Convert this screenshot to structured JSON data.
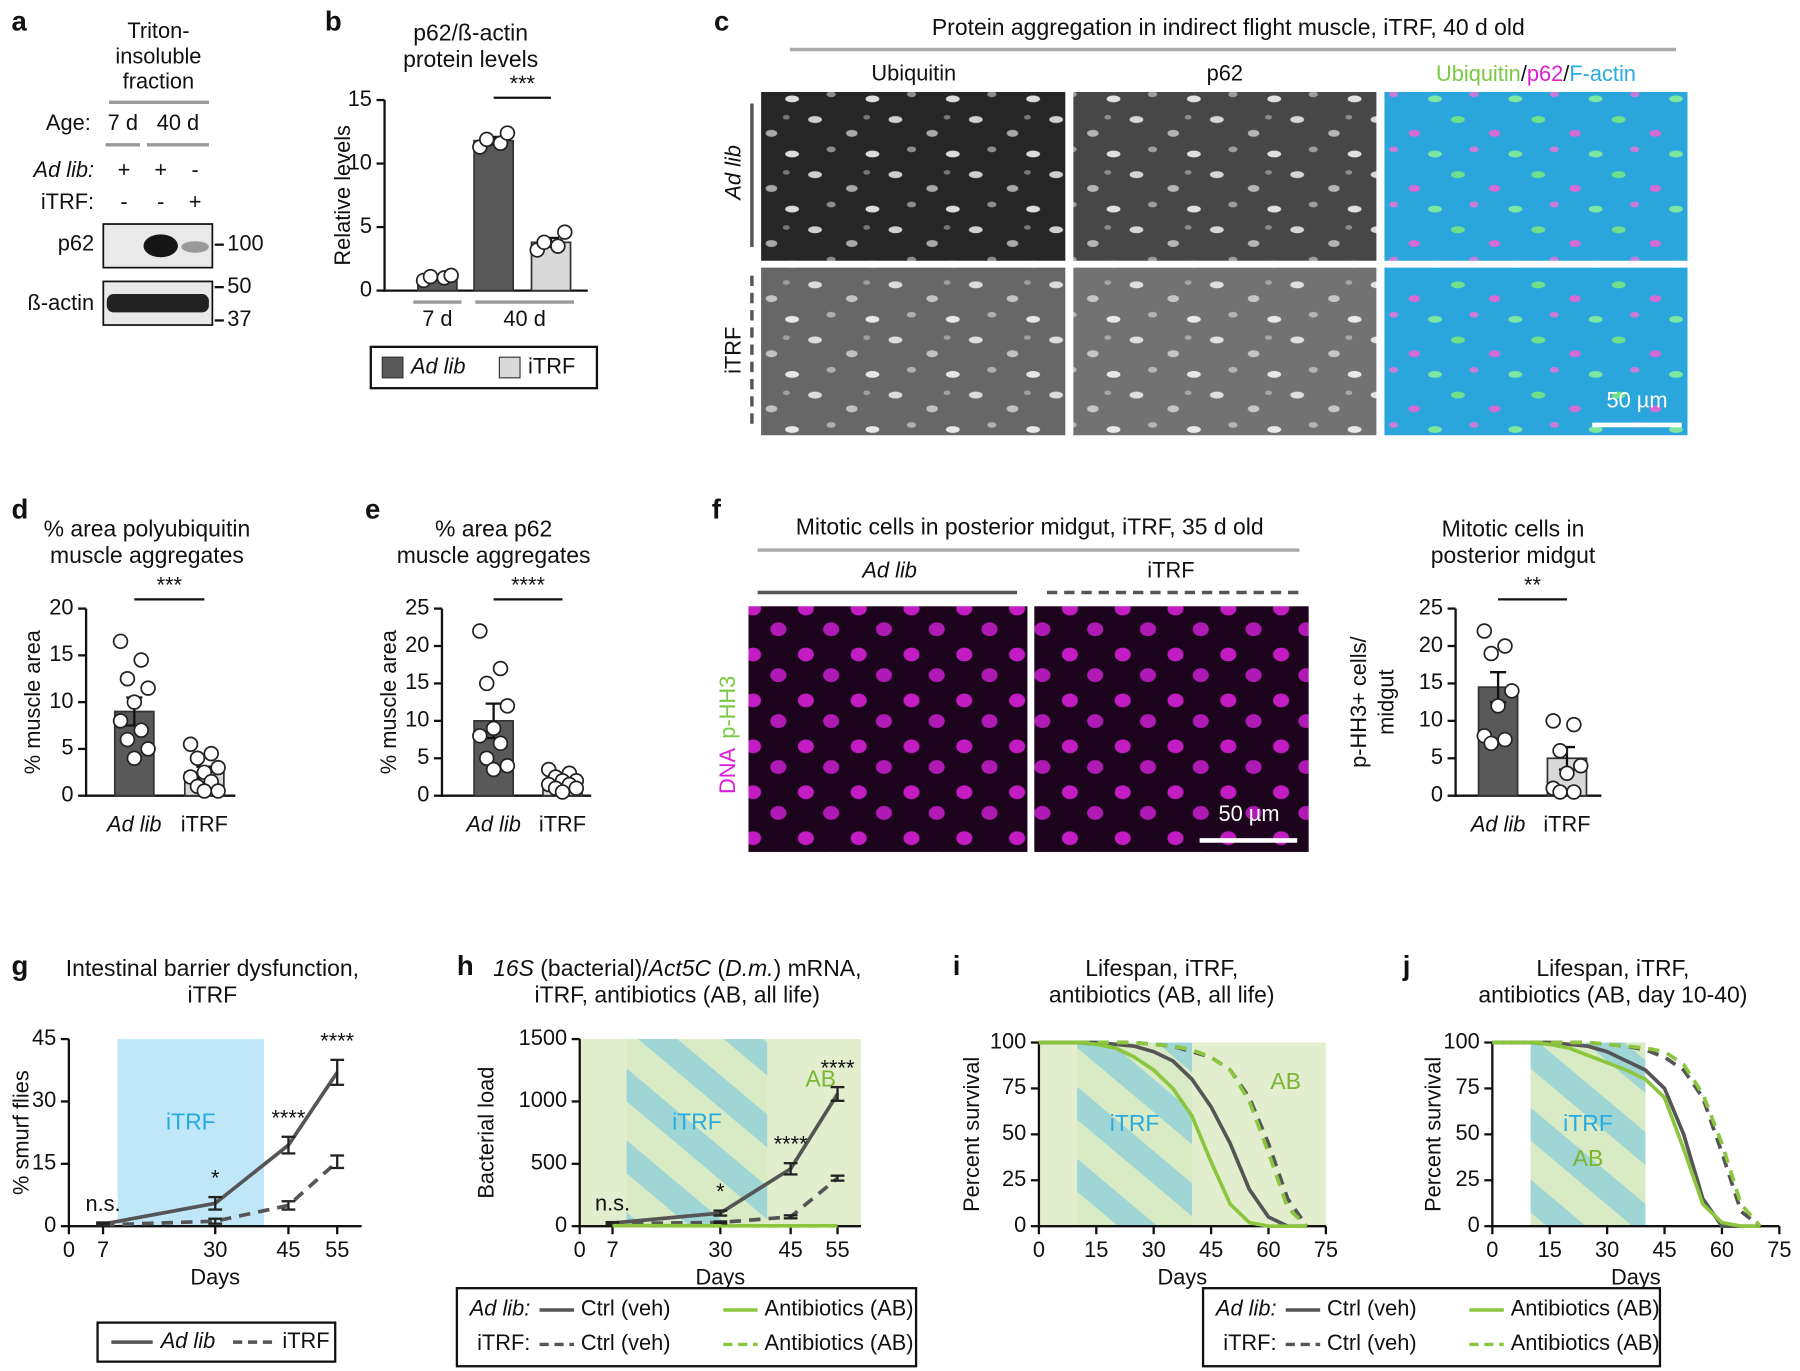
{
  "blot": {
    "panel": "a",
    "fraction": [
      "Triton-",
      "insoluble",
      "fraction"
    ],
    "age_label": "Age:",
    "ages": [
      "7 d",
      "40 d"
    ],
    "rows": [
      {
        "label": "Ad lib:",
        "marks": [
          "+",
          "+",
          "-"
        ]
      },
      {
        "label": "iTRF:",
        "marks": [
          "-",
          "-",
          "+"
        ]
      }
    ],
    "bands": [
      "p62",
      "ß-actin"
    ],
    "markers": [
      100,
      50,
      37
    ]
  },
  "images_c": {
    "panel": "c",
    "title": "Protein aggregation in indirect flight muscle, iTRF, 40 d old",
    "columns": [
      "Ubiquitin",
      "p62"
    ],
    "merge": [
      "Ubiquitin",
      "/",
      "p62",
      "/",
      "F-actin"
    ],
    "rows": [
      "Ad lib",
      "iTRF"
    ],
    "scale": "50 µm"
  },
  "images_f": {
    "panel": "f",
    "title": "Mitotic cells in posterior midgut, iTRF, 35 d old",
    "columns": [
      "Ad lib",
      "iTRF"
    ],
    "stains": [
      "DNA",
      "p-HH3"
    ],
    "scale": "50 µm"
  },
  "chart_data": [
    {
      "type": "bar",
      "panel": "b",
      "title": [
        "p62/ß-actin",
        "protein levels"
      ],
      "ylabel": [
        "Relative levels"
      ],
      "categories": [
        "7 d",
        "40 d"
      ],
      "series": [
        {
          "name": "Ad lib",
          "color": "#595959",
          "values": [
            1.0,
            11.8
          ],
          "errors": [
            0.15,
            0.3
          ],
          "points": [
            [
              0.8,
              1.0,
              1.1,
              1.2
            ],
            [
              11.3,
              11.6,
              11.9,
              12.4
            ]
          ]
        },
        {
          "name": "iTRF",
          "color": "#d9d9d9",
          "values": [
            null,
            3.8
          ],
          "errors": [
            null,
            0.35
          ],
          "points": [
            null,
            [
              3.2,
              3.5,
              3.8,
              4.6
            ]
          ]
        }
      ],
      "ylim": [
        0,
        15
      ],
      "yticks": [
        0,
        5,
        10,
        15
      ],
      "significance": "***"
    },
    {
      "type": "bar",
      "panel": "d",
      "title": [
        "% area polyubiquitin",
        "muscle aggregates"
      ],
      "ylabel": [
        "% muscle area"
      ],
      "categories": [
        "Ad lib",
        "iTRF"
      ],
      "series": [
        {
          "colors": [
            "#595959",
            "#d9d9d9"
          ],
          "values": [
            9.0,
            2.5
          ],
          "errors": [
            1.5,
            0.6
          ],
          "points": [
            [
              16.5,
              14.5,
              12.5,
              11.5,
              10,
              8,
              7,
              6,
              5,
              4
            ],
            [
              5.5,
              4.5,
              4,
              3,
              2.5,
              2,
              1.5,
              1,
              0.5,
              0.5
            ]
          ]
        }
      ],
      "ylim": [
        0,
        20
      ],
      "yticks": [
        0,
        5,
        10,
        15,
        20
      ],
      "significance": "***"
    },
    {
      "type": "bar",
      "panel": "e",
      "title": [
        "% area p62",
        "muscle aggregates"
      ],
      "ylabel": [
        "% muscle area"
      ],
      "categories": [
        "Ad lib",
        "iTRF"
      ],
      "series": [
        {
          "colors": [
            "#595959",
            "#d9d9d9"
          ],
          "values": [
            10.0,
            2.0
          ],
          "errors": [
            2.3,
            0.4
          ],
          "points": [
            [
              22,
              17,
              15,
              12,
              9,
              8,
              7,
              5,
              4,
              3.5
            ],
            [
              3.5,
              3,
              2.5,
              2,
              2,
              1.5,
              1.5,
              1,
              1,
              0.5
            ]
          ]
        }
      ],
      "ylim": [
        0,
        25
      ],
      "yticks": [
        0,
        5,
        10,
        15,
        20,
        25
      ],
      "significance": "****"
    },
    {
      "type": "bar",
      "title": [
        "Mitotic cells in",
        "posterior midgut"
      ],
      "ylabel": [
        "p-HH3+ cells/",
        "midgut"
      ],
      "categories": [
        "Ad lib",
        "iTRF"
      ],
      "series": [
        {
          "colors": [
            "#595959",
            "#d9d9d9"
          ],
          "values": [
            14.5,
            5.0
          ],
          "errors": [
            2.0,
            1.5
          ],
          "points": [
            [
              22,
              20,
              19,
              14,
              12,
              8,
              7.5,
              7
            ],
            [
              10,
              9.5,
              6,
              4,
              3,
              1,
              0.5,
              0.5
            ]
          ]
        }
      ],
      "ylim": [
        0,
        25
      ],
      "yticks": [
        0,
        5,
        10,
        15,
        20,
        25
      ],
      "significance": "**"
    },
    {
      "type": "line",
      "panel": "g",
      "title": [
        "Intestinal barrier dysfunction,",
        "iTRF"
      ],
      "xlabel": "Days",
      "ylabel": [
        "% smurf flies"
      ],
      "x": [
        7,
        30,
        45,
        55
      ],
      "xlim": [
        0,
        60
      ],
      "xticks": [
        0,
        7,
        30,
        45,
        55
      ],
      "ylim": [
        0,
        45
      ],
      "yticks": [
        0,
        15,
        30,
        45
      ],
      "series": [
        {
          "name": "Ad lib",
          "color": "#555555",
          "dash": false,
          "values": [
            0.5,
            5.5,
            19.5,
            37
          ],
          "errors": [
            0.4,
            1.5,
            2,
            3
          ]
        },
        {
          "name": "iTRF",
          "color": "#555555",
          "dash": true,
          "values": [
            0.3,
            1.2,
            5,
            15.5
          ],
          "errors": [
            0.3,
            0.6,
            1,
            1.5
          ]
        }
      ],
      "significance": [
        "n.s.",
        "*",
        "****",
        "****"
      ],
      "regions": [
        {
          "label": "iTRF",
          "xlim": [
            10,
            40
          ],
          "fill": "blue"
        }
      ]
    },
    {
      "type": "line",
      "panel": "h",
      "title": [
        [
          "16S",
          " (bacterial)/",
          "Act5C",
          " (",
          "D.m.",
          ") mRNA,"
        ],
        "iTRF, antibiotics (AB, all life)"
      ],
      "xlabel": "Days",
      "ylabel": [
        "Bacterial load"
      ],
      "x": [
        7,
        30,
        45,
        55
      ],
      "xlim": [
        0,
        60
      ],
      "xticks": [
        0,
        7,
        30,
        45,
        55
      ],
      "ylim": [
        0,
        1500
      ],
      "yticks": [
        0,
        500,
        1000,
        1500
      ],
      "series": [
        {
          "name": "Ctrl (veh)",
          "color": "#555555",
          "dash": false,
          "values": [
            25,
            105,
            460,
            1060
          ],
          "errors": [
            8,
            20,
            45,
            55
          ]
        },
        {
          "name": "Antibiotics (AB)",
          "color": "#8cc63f",
          "dash": false,
          "values": [
            5,
            3,
            3,
            3
          ]
        },
        {
          "name": "Ctrl (veh)",
          "color": "#555555",
          "dash": true,
          "values": [
            20,
            30,
            75,
            385
          ],
          "errors": [
            5,
            8,
            12,
            20
          ]
        },
        {
          "name": "Antibiotics (AB)",
          "color": "#8cc63f",
          "dash": true,
          "values": [
            4,
            3,
            3,
            3
          ]
        }
      ],
      "legend_rows": [
        "Ad lib:",
        "iTRF:"
      ],
      "significance": [
        "n.s.",
        "*",
        "****",
        "****"
      ],
      "regions": [
        {
          "label": "AB",
          "xlim": [
            0,
            60
          ],
          "fill": "green"
        },
        {
          "label": "iTRF",
          "xlim": [
            10,
            40
          ],
          "fill": "hatch"
        }
      ]
    },
    {
      "type": "line",
      "panel": "i",
      "title": [
        "Lifespan, iTRF,",
        "antibiotics (AB, all life)"
      ],
      "xlabel": "Days",
      "ylabel": [
        "Percent survival"
      ],
      "x": [
        0,
        5,
        10,
        15,
        20,
        25,
        30,
        35,
        40,
        45,
        50,
        55,
        60,
        65,
        70
      ],
      "xlim": [
        0,
        75
      ],
      "xticks": [
        0,
        15,
        30,
        45,
        60,
        75
      ],
      "ylim": [
        0,
        100
      ],
      "yticks": [
        0,
        25,
        50,
        75,
        100
      ],
      "series": [
        {
          "name": "Ctrl (veh)",
          "color": "#555555",
          "dash": false,
          "values": [
            100,
            100,
            100,
            100,
            99,
            98,
            95,
            90,
            80,
            65,
            45,
            20,
            5,
            0,
            0
          ]
        },
        {
          "name": "Antibiotics (AB)",
          "color": "#8cc63f",
          "dash": false,
          "values": [
            100,
            100,
            100,
            99,
            97,
            92,
            85,
            75,
            60,
            35,
            12,
            2,
            0,
            0,
            0
          ]
        },
        {
          "name": "Ctrl (veh)",
          "color": "#555555",
          "dash": true,
          "values": [
            100,
            100,
            100,
            100,
            100,
            100,
            99,
            98,
            95,
            92,
            85,
            70,
            45,
            15,
            0
          ]
        },
        {
          "name": "Antibiotics (AB)",
          "color": "#8cc63f",
          "dash": true,
          "values": [
            100,
            100,
            100,
            100,
            100,
            100,
            99,
            98,
            96,
            92,
            85,
            68,
            40,
            10,
            0
          ]
        }
      ],
      "legend_rows": [
        "Ad lib:",
        "iTRF:"
      ],
      "regions": [
        {
          "label": "AB",
          "xlim": [
            0,
            75
          ],
          "fill": "green"
        },
        {
          "label": "iTRF",
          "xlim": [
            10,
            40
          ],
          "fill": "hatch"
        }
      ]
    },
    {
      "type": "line",
      "panel": "j",
      "title": [
        "Lifespan, iTRF,",
        "antibiotics (AB, day 10-40)"
      ],
      "xlabel": "Days",
      "ylabel": [
        "Percent survival"
      ],
      "x": [
        0,
        5,
        10,
        15,
        20,
        25,
        30,
        35,
        40,
        45,
        50,
        55,
        60,
        65,
        70
      ],
      "xlim": [
        0,
        75
      ],
      "xticks": [
        0,
        15,
        30,
        45,
        60,
        75
      ],
      "ylim": [
        0,
        100
      ],
      "yticks": [
        0,
        25,
        50,
        75,
        100
      ],
      "series": [
        {
          "color": "#555555",
          "dash": false,
          "values": [
            100,
            100,
            100,
            100,
            99,
            98,
            95,
            90,
            85,
            75,
            50,
            15,
            0,
            0,
            0
          ]
        },
        {
          "color": "#8cc63f",
          "dash": false,
          "values": [
            100,
            100,
            100,
            99,
            97,
            93,
            89,
            85,
            80,
            70,
            42,
            12,
            2,
            0,
            0
          ]
        },
        {
          "color": "#555555",
          "dash": true,
          "values": [
            100,
            100,
            100,
            100,
            100,
            100,
            99,
            98,
            96,
            92,
            85,
            70,
            40,
            8,
            0
          ]
        },
        {
          "color": "#8cc63f",
          "dash": true,
          "values": [
            100,
            100,
            100,
            100,
            100,
            100,
            99,
            98,
            97,
            95,
            88,
            72,
            45,
            12,
            0
          ]
        }
      ],
      "regions": [
        {
          "label": "AB",
          "xlim": [
            10,
            40
          ],
          "fill": "green"
        },
        {
          "label": "iTRF",
          "xlim": [
            10,
            40
          ],
          "fill": "hatch"
        }
      ]
    }
  ]
}
